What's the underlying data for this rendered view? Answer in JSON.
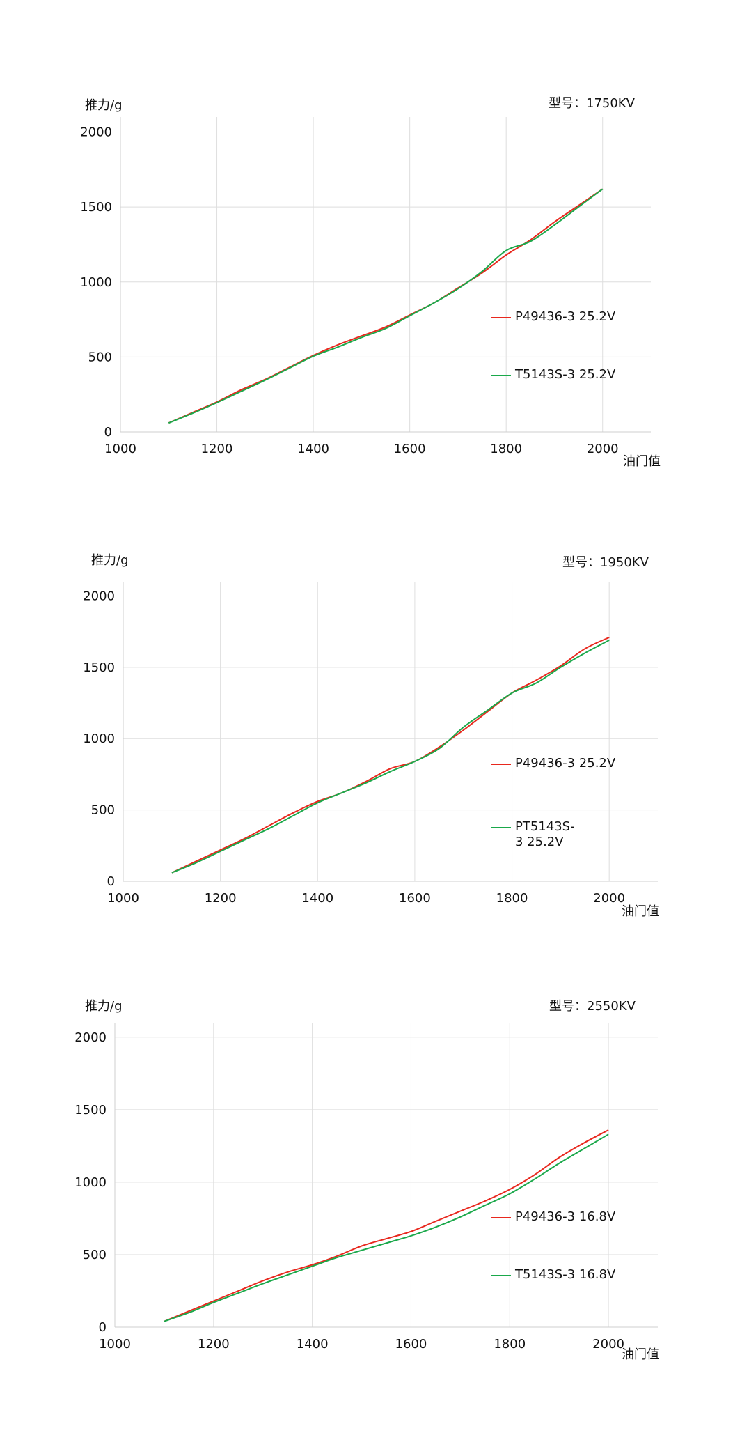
{
  "chart_data": [
    {
      "type": "line",
      "ylabel": "推力/g",
      "xlabel": "油门值",
      "model_label": "型号：1750KV",
      "xlim": [
        1000,
        2100
      ],
      "ylim": [
        0,
        2100
      ],
      "xticks": [
        1000,
        1200,
        1400,
        1600,
        1800,
        2000
      ],
      "yticks": [
        0,
        500,
        1000,
        1500,
        2000
      ],
      "grid": true,
      "legend_position": "right",
      "series": [
        {
          "name": "P49436-3 25.2V",
          "color": "#e8281e",
          "x": [
            1100,
            1150,
            1200,
            1250,
            1300,
            1350,
            1400,
            1450,
            1500,
            1550,
            1600,
            1650,
            1700,
            1750,
            1800,
            1850,
            1900,
            1950,
            2000
          ],
          "y": [
            60,
            130,
            200,
            280,
            350,
            430,
            510,
            580,
            640,
            700,
            780,
            860,
            960,
            1060,
            1180,
            1280,
            1400,
            1510,
            1620
          ]
        },
        {
          "name": "T5143S-3 25.2V",
          "color": "#1aa84a",
          "x": [
            1100,
            1150,
            1200,
            1250,
            1300,
            1350,
            1400,
            1450,
            1500,
            1550,
            1600,
            1650,
            1700,
            1750,
            1800,
            1850,
            1900,
            1950,
            2000
          ],
          "y": [
            60,
            125,
            195,
            270,
            345,
            425,
            505,
            565,
            630,
            690,
            775,
            860,
            955,
            1070,
            1210,
            1270,
            1380,
            1500,
            1620
          ]
        }
      ]
    },
    {
      "type": "line",
      "ylabel": "推力/g",
      "xlabel": "油门值",
      "model_label": "型号：1950KV",
      "xlim": [
        1000,
        2100
      ],
      "ylim": [
        0,
        2100
      ],
      "xticks": [
        1000,
        1200,
        1400,
        1600,
        1800,
        2000
      ],
      "yticks": [
        0,
        500,
        1000,
        1500,
        2000
      ],
      "grid": true,
      "legend_position": "right",
      "series": [
        {
          "name": "P49436-3 25.2V",
          "color": "#e8281e",
          "x": [
            1100,
            1150,
            1200,
            1250,
            1300,
            1350,
            1400,
            1450,
            1500,
            1550,
            1600,
            1650,
            1700,
            1750,
            1800,
            1850,
            1900,
            1950,
            2000
          ],
          "y": [
            60,
            140,
            220,
            300,
            390,
            480,
            560,
            620,
            700,
            790,
            840,
            940,
            1060,
            1190,
            1320,
            1410,
            1510,
            1630,
            1710
          ]
        },
        {
          "name": "PT5143S-3 25.2V",
          "color": "#1aa84a",
          "x": [
            1100,
            1150,
            1200,
            1250,
            1300,
            1350,
            1400,
            1450,
            1500,
            1550,
            1600,
            1650,
            1700,
            1750,
            1800,
            1850,
            1900,
            1950,
            2000
          ],
          "y": [
            60,
            130,
            210,
            290,
            370,
            460,
            550,
            620,
            690,
            770,
            840,
            930,
            1080,
            1200,
            1320,
            1390,
            1500,
            1600,
            1690
          ]
        }
      ]
    },
    {
      "type": "line",
      "ylabel": "推力/g",
      "xlabel": "油门值",
      "model_label": "型号：2550KV",
      "xlim": [
        1000,
        2100
      ],
      "ylim": [
        0,
        2100
      ],
      "xticks": [
        1000,
        1200,
        1400,
        1600,
        1800,
        2000
      ],
      "yticks": [
        0,
        500,
        1000,
        1500,
        2000
      ],
      "grid": true,
      "legend_position": "right",
      "series": [
        {
          "name": "P49436-3 16.8V",
          "color": "#e8281e",
          "x": [
            1100,
            1150,
            1200,
            1250,
            1300,
            1350,
            1400,
            1450,
            1500,
            1550,
            1600,
            1650,
            1700,
            1750,
            1800,
            1850,
            1900,
            1950,
            2000
          ],
          "y": [
            40,
            110,
            180,
            250,
            320,
            380,
            430,
            490,
            560,
            610,
            660,
            730,
            800,
            870,
            950,
            1050,
            1170,
            1270,
            1360
          ]
        },
        {
          "name": "T5143S-3 16.8V",
          "color": "#1aa84a",
          "x": [
            1100,
            1150,
            1200,
            1250,
            1300,
            1350,
            1400,
            1450,
            1500,
            1550,
            1600,
            1650,
            1700,
            1750,
            1800,
            1850,
            1900,
            1950,
            2000
          ],
          "y": [
            40,
            100,
            170,
            235,
            300,
            360,
            420,
            480,
            530,
            580,
            630,
            690,
            760,
            840,
            920,
            1020,
            1130,
            1230,
            1330
          ]
        }
      ]
    }
  ]
}
